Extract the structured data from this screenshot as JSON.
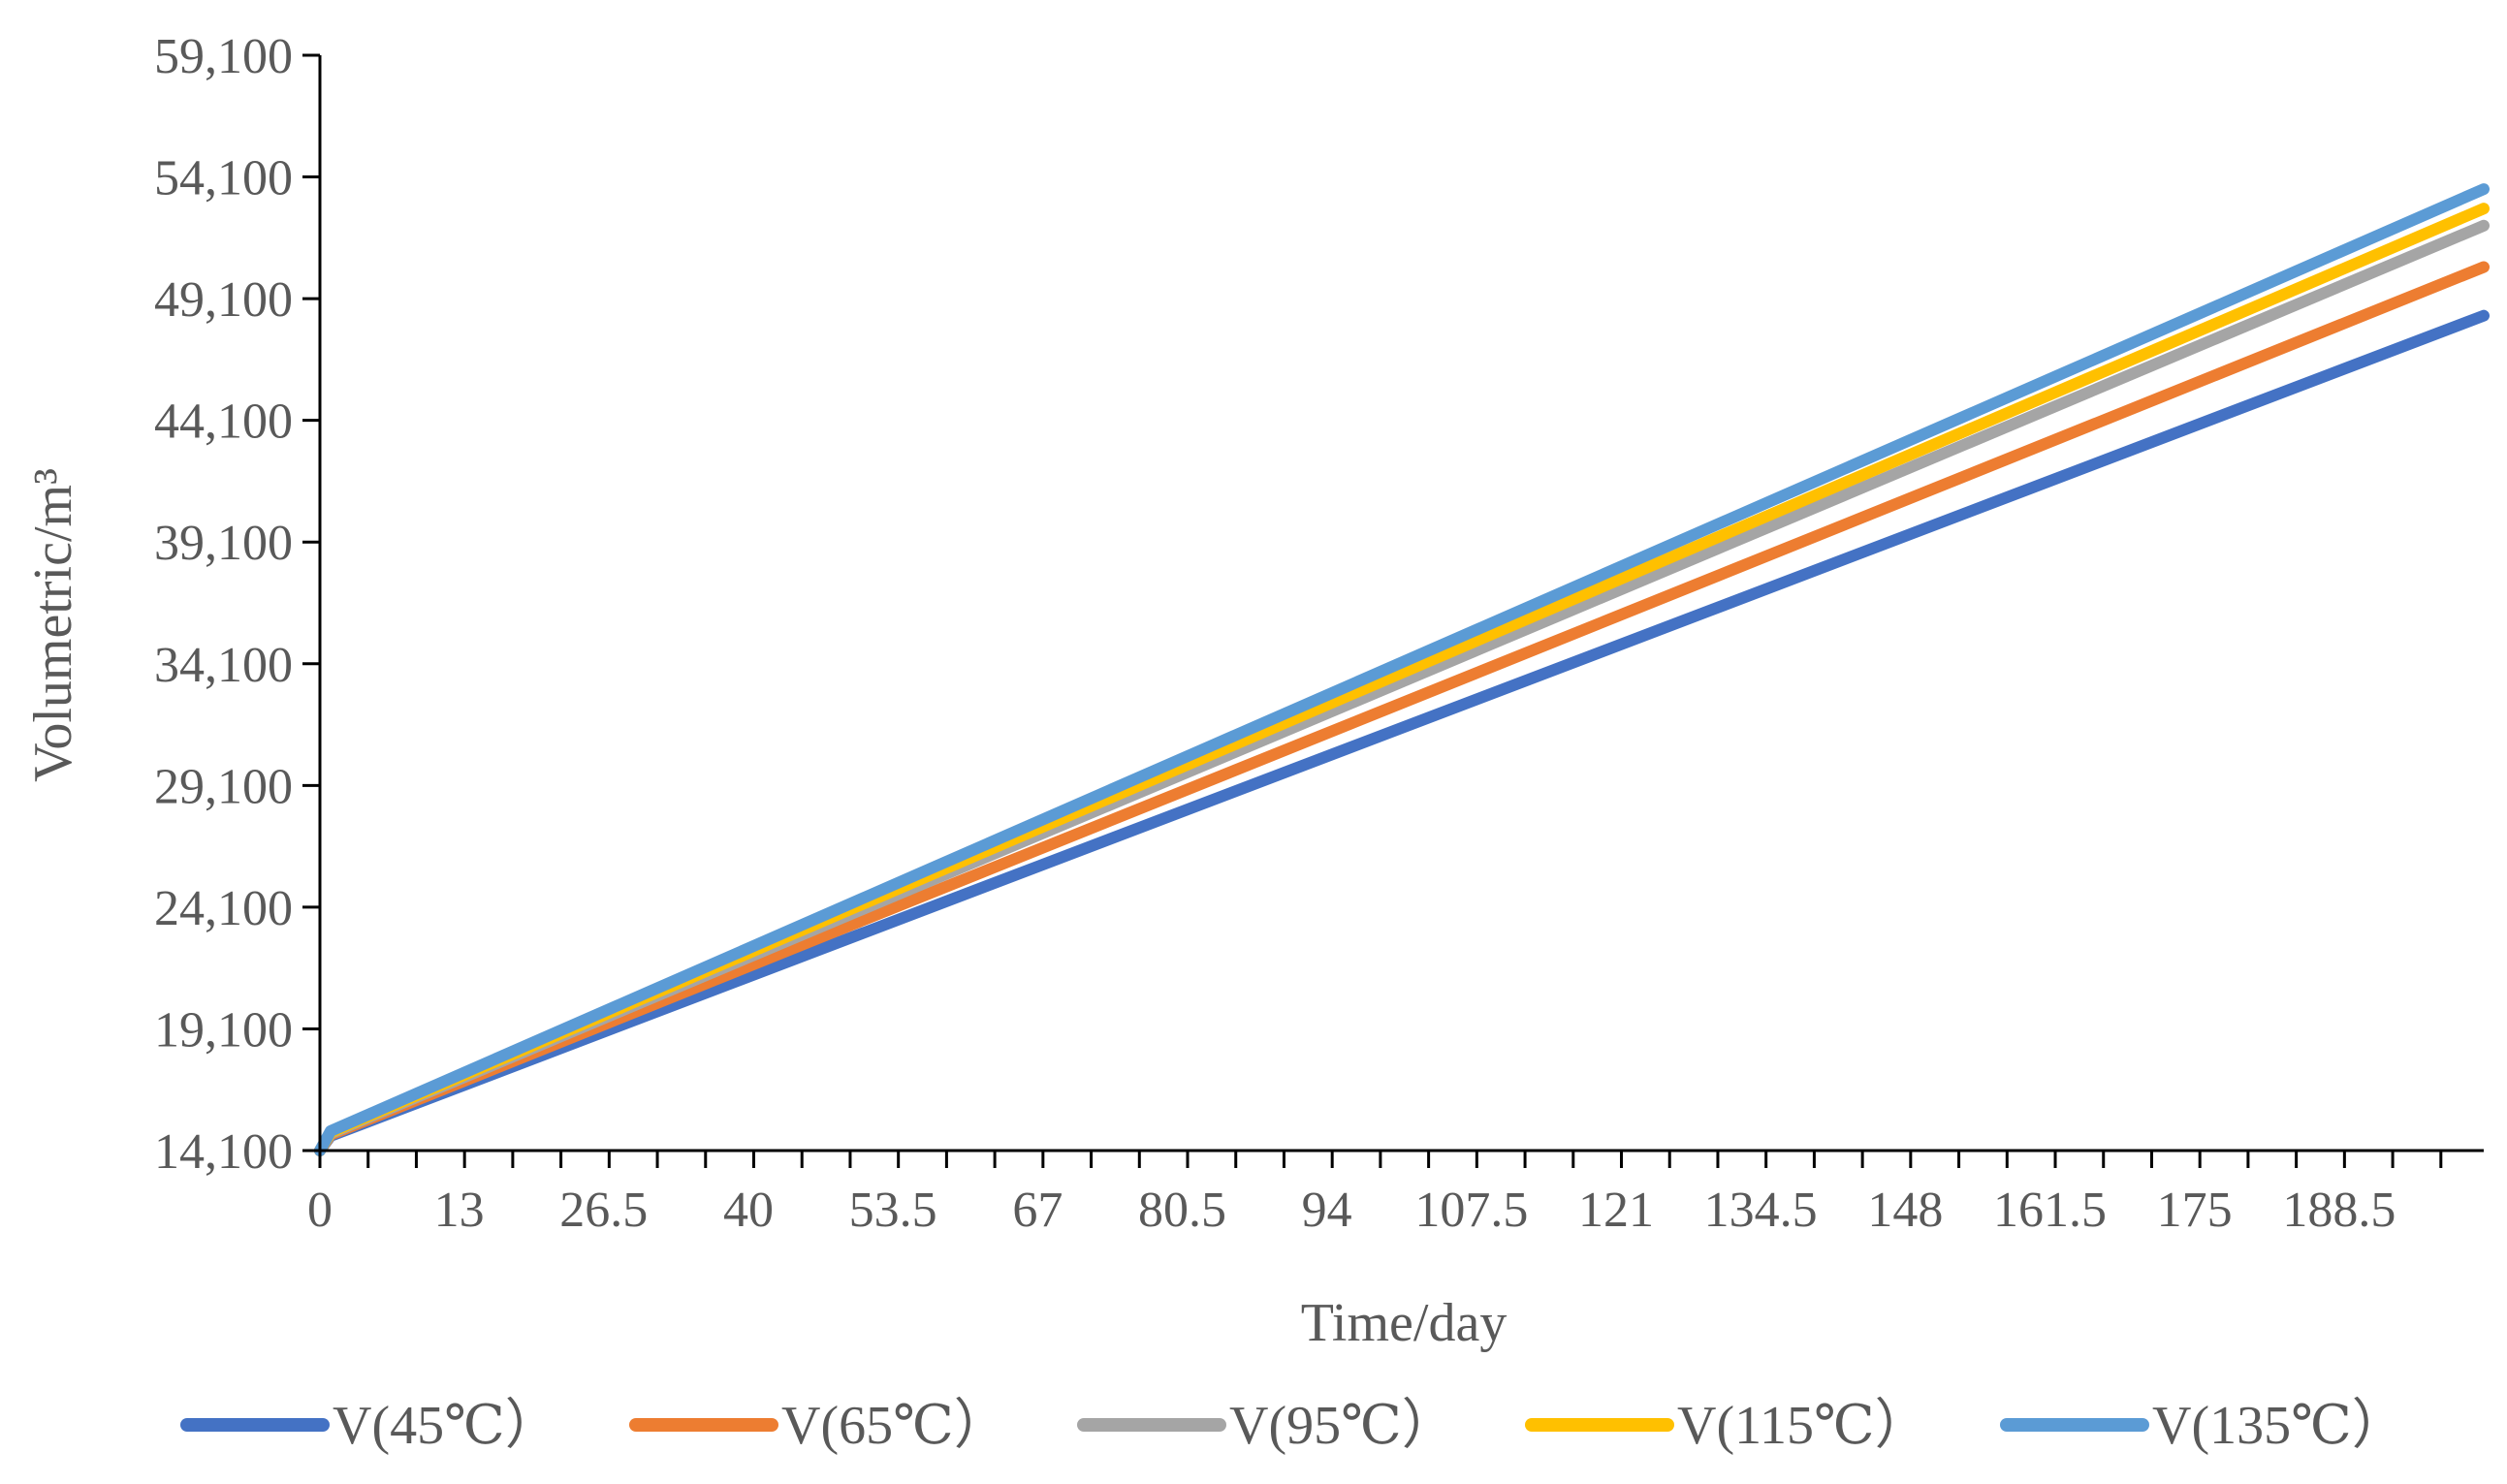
{
  "chart_data": {
    "type": "line",
    "title": "",
    "xlabel": "Time/day",
    "ylabel": "Volumetric/m³",
    "xlim": [
      0,
      202
    ],
    "ylim": [
      14100,
      59100
    ],
    "y_ticks": [
      14100,
      19100,
      24100,
      29100,
      34100,
      39100,
      44100,
      49100,
      54100,
      59100
    ],
    "y_tick_labels": [
      "14,100",
      "19,100",
      "24,100",
      "29,100",
      "34,100",
      "39,100",
      "44,100",
      "49,100",
      "54,100",
      "59,100"
    ],
    "x_label_ticks": [
      0,
      13,
      26.5,
      40,
      53.5,
      67,
      80.5,
      94,
      107.5,
      121,
      134.5,
      148,
      161.5,
      175,
      188.5
    ],
    "x_tick_labels": [
      "0",
      "13",
      "26.5",
      "40",
      "53.5",
      "67",
      "80.5",
      "94",
      "107.5",
      "121",
      "134.5",
      "148",
      "161.5",
      "175",
      "188.5"
    ],
    "x_minor_step": 4.5,
    "grid": false,
    "legend_position": "bottom",
    "series": [
      {
        "name": "V(45℃）",
        "color": "#4472C4",
        "x": [
          0,
          1,
          202
        ],
        "values": [
          14100,
          14700,
          48400
        ]
      },
      {
        "name": "V(65℃）",
        "color": "#ED7D31",
        "x": [
          0,
          1,
          202
        ],
        "values": [
          14100,
          14750,
          50400
        ]
      },
      {
        "name": "V(95℃）",
        "color": "#A5A5A5",
        "x": [
          0,
          1,
          202
        ],
        "values": [
          14100,
          14800,
          52100
        ]
      },
      {
        "name": "V(115℃）",
        "color": "#FFC000",
        "x": [
          0,
          1,
          202
        ],
        "values": [
          14100,
          14850,
          52800
        ]
      },
      {
        "name": "V(135℃）",
        "color": "#5B9BD5",
        "x": [
          0,
          1,
          202
        ],
        "values": [
          14100,
          14900,
          53600
        ]
      }
    ]
  }
}
